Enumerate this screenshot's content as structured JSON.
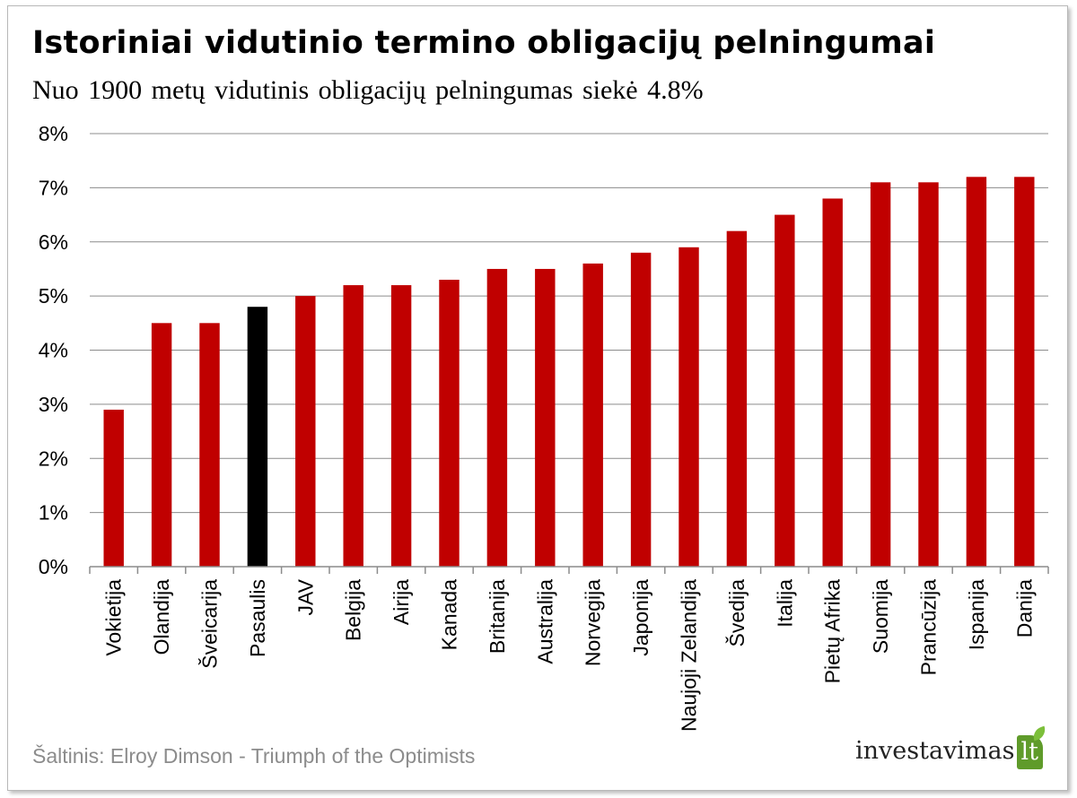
{
  "header": {
    "title": "Istoriniai vidutinio termino obligacijų pelningumai",
    "subtitle": "Nuo 1900 metų vidutinis obligacijų pelningumas siekė 4.8%"
  },
  "footer": {
    "source": "Šaltinis: Elroy Dimson - Triumph  of the Optimists",
    "logo_text": "investavimas",
    "logo_badge": "lt"
  },
  "chart_data": {
    "type": "bar",
    "title": "Istoriniai vidutinio termino obligacijų pelningumai",
    "subtitle": "Nuo 1900 metų vidutinis obligacijų pelningumas siekė 4.8%",
    "xlabel": "",
    "ylabel": "",
    "categories": [
      "Vokietija",
      "Olandija",
      "Šveicarija",
      "Pasaulis",
      "JAV",
      "Belgija",
      "Airija",
      "Kanada",
      "Britanija",
      "Australija",
      "Norvegija",
      "Japonija",
      "Naujoji Zelandija",
      "Švedija",
      "Italija",
      "Pietų Afrika",
      "Suomija",
      "Prancūzija",
      "Ispanija",
      "Danija"
    ],
    "values": [
      2.9,
      4.5,
      4.5,
      4.8,
      5.0,
      5.2,
      5.2,
      5.3,
      5.5,
      5.5,
      5.6,
      5.8,
      5.9,
      6.2,
      6.5,
      6.8,
      7.1,
      7.1,
      7.2,
      7.2
    ],
    "ylim": [
      0,
      8
    ],
    "yticks": [
      0,
      1,
      2,
      3,
      4,
      5,
      6,
      7,
      8
    ],
    "ytick_labels": [
      "0%",
      "1%",
      "2%",
      "3%",
      "4%",
      "5%",
      "6%",
      "7%",
      "8%"
    ],
    "grid": true,
    "legend": "none",
    "highlight_category": "Pasaulis",
    "colors": {
      "bar": "#c00000",
      "highlight": "#000000",
      "grid": "#8c8c8c",
      "axis": "#8c8c8c",
      "text": "#000000"
    }
  }
}
